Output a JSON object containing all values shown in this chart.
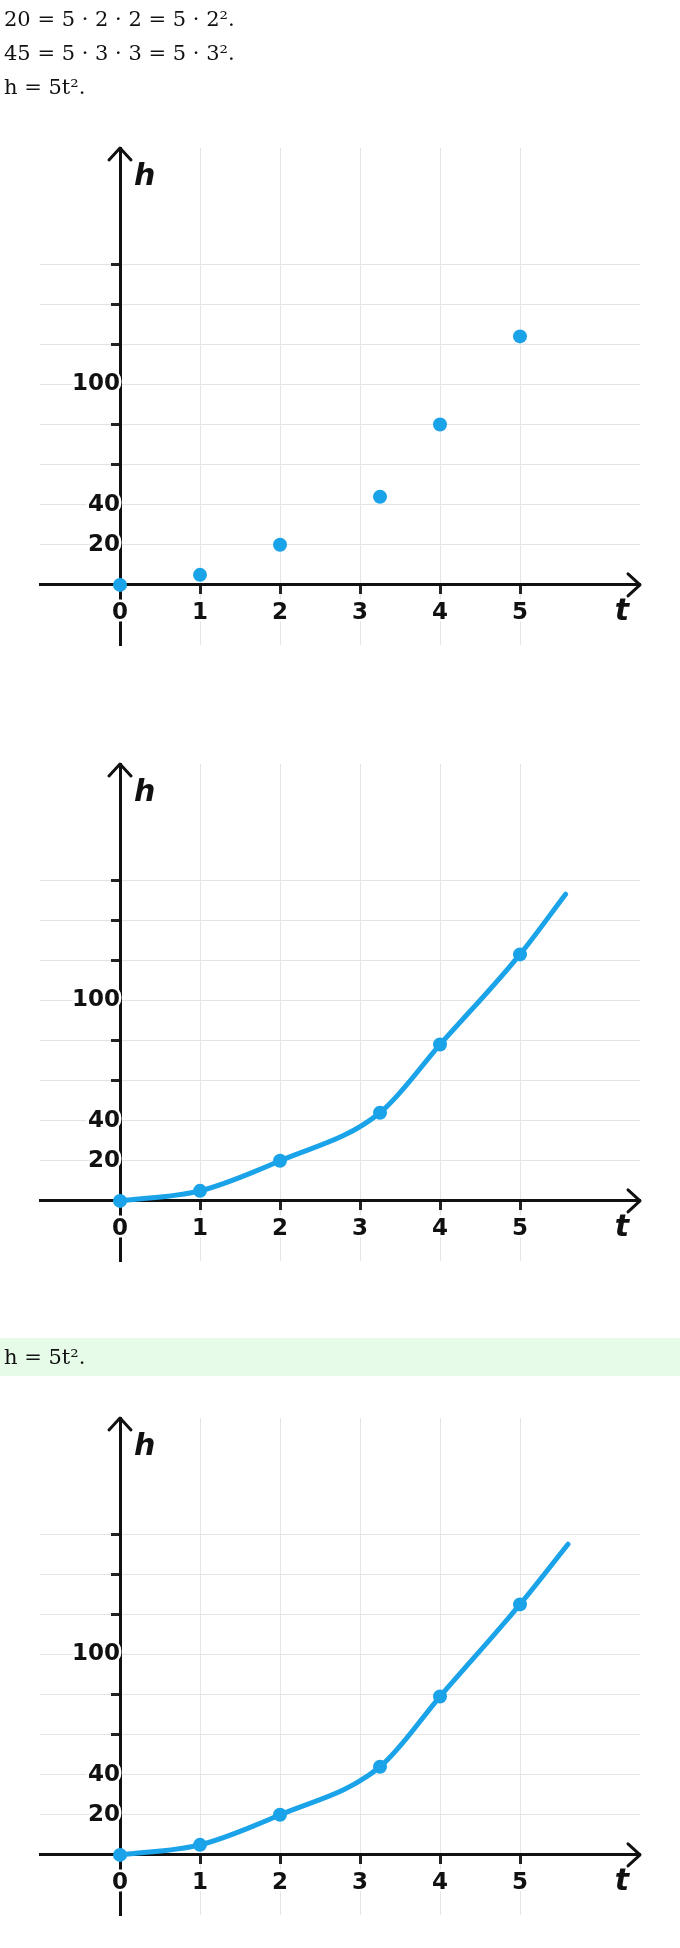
{
  "chart_data": [
    {
      "type": "scatter",
      "annotations": [
        "20 = 5 · 2 · 2 = 5 · 2².",
        "45 = 5 · 3 · 3 = 5 · 3².",
        "h = 5t²."
      ],
      "xlabel": "t",
      "ylabel": "h",
      "xlim": [
        -1,
        6.5
      ],
      "ylim": [
        -30,
        218
      ],
      "xticks": [
        0,
        1,
        2,
        3,
        4,
        5
      ],
      "yticks": [
        20,
        40,
        {
          "value": 60,
          "label": null
        },
        {
          "value": 80,
          "label": null
        },
        100,
        {
          "value": 120,
          "label": null
        },
        {
          "value": 140,
          "label": null
        },
        {
          "value": 160,
          "label": null
        }
      ],
      "grid": true,
      "marker": "circle",
      "color": "#1aa3e8",
      "x": [
        0,
        1,
        2,
        3.25,
        4,
        5
      ],
      "values": [
        0,
        5,
        20,
        44,
        80,
        124
      ]
    },
    {
      "type": "line",
      "xlabel": "t",
      "ylabel": "h",
      "xlim": [
        -1,
        6.5
      ],
      "ylim": [
        -30,
        218
      ],
      "xticks": [
        0,
        1,
        2,
        3,
        4,
        5
      ],
      "yticks": [
        20,
        40,
        {
          "value": 60,
          "label": null
        },
        {
          "value": 80,
          "label": null
        },
        100,
        {
          "value": 120,
          "label": null
        },
        {
          "value": 140,
          "label": null
        },
        {
          "value": 160,
          "label": null
        }
      ],
      "grid": true,
      "series": [
        {
          "type": "line",
          "marker": "none",
          "color": "#1aa3e8",
          "x": [
            0,
            1,
            2,
            3.25,
            4,
            5,
            5.57
          ],
          "values": [
            0,
            5,
            20,
            44,
            78,
            123,
            153
          ]
        },
        {
          "type": "scatter",
          "marker": "circle",
          "color": "#1aa3e8",
          "x": [
            0,
            1,
            2,
            3.25,
            4,
            5
          ],
          "values": [
            0,
            5,
            20,
            44,
            78,
            123
          ]
        }
      ]
    },
    {
      "type": "line",
      "annotations": [
        "h = 5t²."
      ],
      "xlabel": "t",
      "ylabel": "h",
      "xlim": [
        -1,
        6.5
      ],
      "ylim": [
        -30,
        218
      ],
      "xticks": [
        0,
        1,
        2,
        3,
        4,
        5
      ],
      "yticks": [
        20,
        40,
        {
          "value": 60,
          "label": null
        },
        {
          "value": 80,
          "label": null
        },
        100,
        {
          "value": 120,
          "label": null
        },
        {
          "value": 140,
          "label": null
        },
        {
          "value": 160,
          "label": null
        }
      ],
      "grid": true,
      "series": [
        {
          "type": "line",
          "marker": "none",
          "color": "#1aa3e8",
          "x": [
            0,
            1,
            2,
            3.25,
            4,
            5,
            5.6
          ],
          "values": [
            0,
            5,
            20,
            44,
            79,
            125,
            155
          ]
        },
        {
          "type": "scatter",
          "marker": "circle",
          "color": "#1aa3e8",
          "x": [
            0,
            1,
            2,
            3.25,
            4,
            5
          ],
          "values": [
            0,
            5,
            20,
            44,
            79,
            125
          ]
        }
      ]
    }
  ]
}
